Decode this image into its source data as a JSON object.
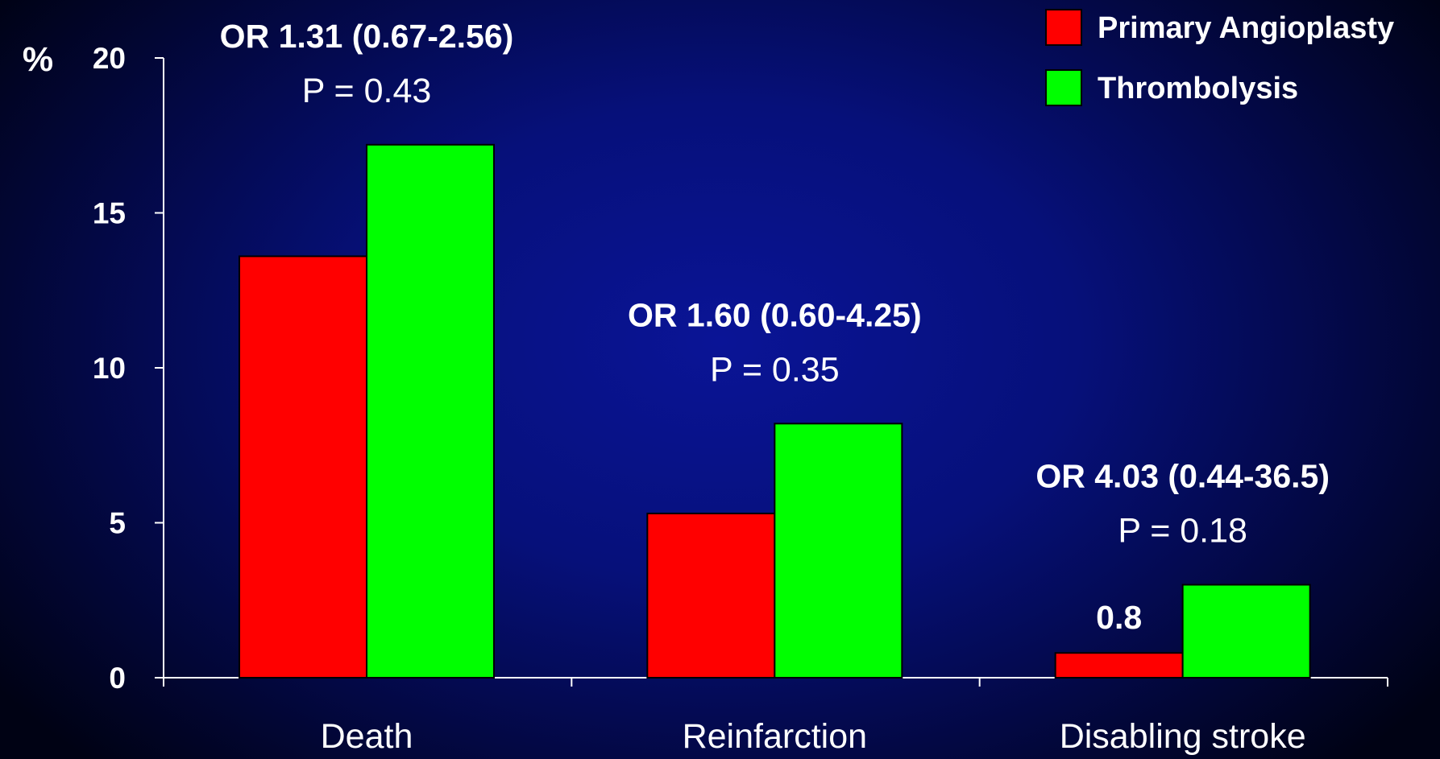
{
  "chart_data": {
    "type": "bar",
    "ylabel": "%",
    "ylim": [
      0,
      20
    ],
    "yticks": [
      0,
      5,
      10,
      15,
      20
    ],
    "categories": [
      "Death",
      "Reinfarction",
      "Disabling stroke"
    ],
    "series": [
      {
        "name": "Primary Angioplasty",
        "color": "#ff0000",
        "values": [
          13.6,
          5.3,
          0.8
        ]
      },
      {
        "name": "Thrombolysis",
        "color": "#00ff00",
        "values": [
          17.2,
          8.2,
          3.0
        ]
      }
    ],
    "annotations": [
      {
        "category": "Death",
        "or_text": "OR 1.31 (0.67-2.56)",
        "p_text": "P = 0.43"
      },
      {
        "category": "Reinfarction",
        "or_text": "OR 1.60 (0.60-4.25)",
        "p_text": "P = 0.35"
      },
      {
        "category": "Disabling stroke",
        "or_text": "OR 4.03 (0.44-36.5)",
        "p_text": "P = 0.18"
      }
    ],
    "data_labels": [
      {
        "category": "Disabling stroke",
        "series": "Primary Angioplasty",
        "text": "0.8"
      }
    ],
    "legend_position": "top-right",
    "grid": false
  }
}
